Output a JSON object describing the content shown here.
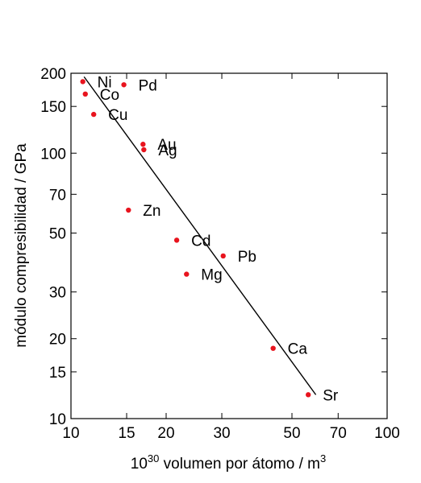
{
  "chart_data": {
    "type": "scatter",
    "xlabel_sup": "30",
    "xlabel_prefix": "10",
    "xlabel_rest": " volumen por átomo / m",
    "xlabel_unit_sup": "3",
    "ylabel": "módulo compresibilidad / GPa",
    "x_scale": "log",
    "y_scale": "log",
    "xlim": [
      10,
      100
    ],
    "ylim": [
      10,
      200
    ],
    "x_ticks": [
      10,
      15,
      20,
      30,
      50,
      70,
      100
    ],
    "x_tick_labels": [
      "10",
      "15",
      "20",
      "30",
      "50",
      "70",
      "100"
    ],
    "y_ticks": [
      10,
      15,
      20,
      30,
      50,
      70,
      100,
      150,
      200
    ],
    "y_tick_labels": [
      "10",
      "15",
      "20",
      "30",
      "50",
      "70",
      "100",
      "150",
      "200"
    ],
    "grid": false,
    "point_color": "#e8141e",
    "points": [
      {
        "label": "Ni",
        "x": 10.9,
        "y": 186
      },
      {
        "label": "Pd",
        "x": 14.7,
        "y": 181
      },
      {
        "label": "Co",
        "x": 11.1,
        "y": 167
      },
      {
        "label": "Cu",
        "x": 11.8,
        "y": 140
      },
      {
        "label": "Au",
        "x": 16.9,
        "y": 108
      },
      {
        "label": "Ag",
        "x": 17.0,
        "y": 103
      },
      {
        "label": "Zn",
        "x": 15.2,
        "y": 61
      },
      {
        "label": "Cd",
        "x": 21.6,
        "y": 47
      },
      {
        "label": "Pb",
        "x": 30.3,
        "y": 41
      },
      {
        "label": "Mg",
        "x": 23.2,
        "y": 35
      },
      {
        "label": "Ca",
        "x": 43.6,
        "y": 18.4
      },
      {
        "label": "Sr",
        "x": 56.3,
        "y": 12.3
      }
    ],
    "fit_line": {
      "x": [
        11.0,
        59.5
      ],
      "y": [
        194,
        12.3
      ]
    }
  }
}
